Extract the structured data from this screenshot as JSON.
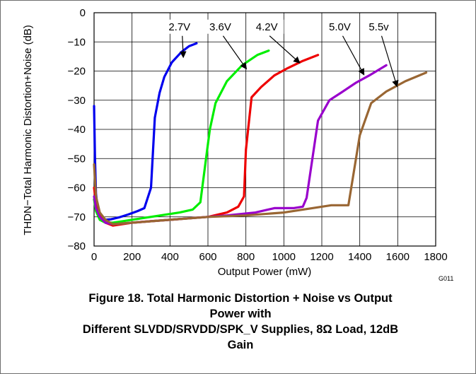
{
  "chart_data": {
    "type": "line",
    "xlabel": "Output Power (mW)",
    "ylabel": "THDN−Total Harmonic Distortion+Noise (dB)",
    "xlim": [
      0,
      1800
    ],
    "ylim": [
      -80,
      0
    ],
    "xticks": [
      "0",
      "200",
      "400",
      "600",
      "800",
      "1000",
      "1200",
      "1400",
      "1600",
      "1800"
    ],
    "yticks": [
      "0",
      "−10",
      "−20",
      "−30",
      "−40",
      "−50",
      "−60",
      "−70",
      "−80"
    ],
    "grid": true,
    "graph_id": "G011",
    "series": [
      {
        "name": "2.7V",
        "color": "#0000ee",
        "x": [
          0,
          5,
          10,
          20,
          40,
          60,
          90,
          130,
          180,
          230,
          265,
          300,
          320,
          345,
          370,
          410,
          460,
          500,
          540
        ],
        "y": [
          -32,
          -50,
          -62,
          -68,
          -70.5,
          -71,
          -70.8,
          -70.2,
          -69.2,
          -68,
          -67,
          -60,
          -36,
          -27.5,
          -22,
          -17,
          -13.5,
          -11.5,
          -10.5
        ]
      },
      {
        "name": "3.6V",
        "color": "#00ee00",
        "x": [
          0,
          10,
          30,
          60,
          100,
          150,
          250,
          350,
          450,
          520,
          560,
          590,
          610,
          640,
          700,
          780,
          860,
          920
        ],
        "y": [
          -64,
          -68,
          -71,
          -72,
          -72,
          -71.5,
          -70.5,
          -69.5,
          -68.5,
          -67.5,
          -65,
          -50,
          -40,
          -31,
          -23.5,
          -18,
          -14.5,
          -13
        ]
      },
      {
        "name": "4.2V",
        "color": "#ee0000",
        "x": [
          0,
          10,
          30,
          60,
          100,
          200,
          300,
          400,
          500,
          600,
          700,
          760,
          790,
          800,
          830,
          880,
          950,
          1020,
          1100,
          1180
        ],
        "y": [
          -60,
          -65,
          -69.5,
          -72,
          -73,
          -72,
          -71.5,
          -71,
          -70.5,
          -70,
          -68.5,
          -66.5,
          -63,
          -47,
          -29,
          -25.5,
          -21.5,
          -19,
          -16.5,
          -14.5
        ]
      },
      {
        "name": "5.0V",
        "color": "#9900cc",
        "x": [
          0,
          10,
          30,
          60,
          100,
          200,
          300,
          500,
          700,
          850,
          950,
          1050,
          1100,
          1120,
          1180,
          1240,
          1300,
          1380,
          1450,
          1540
        ],
        "y": [
          -63,
          -67,
          -70,
          -72,
          -72.5,
          -72,
          -71.5,
          -70.5,
          -69.5,
          -68.5,
          -67,
          -67,
          -66.5,
          -63.5,
          -37,
          -30,
          -27.5,
          -24,
          -21.5,
          -18
        ]
      },
      {
        "name": "5.5v",
        "color": "#996633",
        "x": [
          0,
          10,
          30,
          60,
          100,
          200,
          400,
          600,
          800,
          1000,
          1150,
          1250,
          1340,
          1400,
          1460,
          1540,
          1640,
          1750
        ],
        "y": [
          -52,
          -63,
          -68.5,
          -71,
          -72.5,
          -72,
          -71,
          -70,
          -69.5,
          -68.5,
          -67,
          -66,
          -66,
          -42,
          -31,
          -27,
          -23.5,
          -20.5
        ]
      }
    ],
    "annotations": [
      {
        "text": "2.7V",
        "color": "#000000",
        "x": 450,
        "y": -6,
        "arrow_to": [
          470,
          -15
        ]
      },
      {
        "text": "3.6V",
        "color": "#000000",
        "x": 665,
        "y": -6,
        "arrow_to": [
          800,
          -19
        ]
      },
      {
        "text": "4.2V",
        "color": "#000000",
        "x": 910,
        "y": -6,
        "arrow_to": [
          1080,
          -17
        ]
      },
      {
        "text": "5.0V",
        "color": "#000000",
        "x": 1295,
        "y": -6,
        "arrow_to": [
          1420,
          -21
        ]
      },
      {
        "text": "5.5v",
        "color": "#000000",
        "x": 1500,
        "y": -6,
        "arrow_to": [
          1595,
          -25
        ]
      }
    ]
  },
  "caption": {
    "line1": "Figure 18. Total Harmonic Distortion + Noise vs Output",
    "line2": "Power with",
    "line3": "Different SLVDD/SRVDD/SPK_V Supplies, 8Ω Load, 12dB",
    "line4": "Gain"
  }
}
